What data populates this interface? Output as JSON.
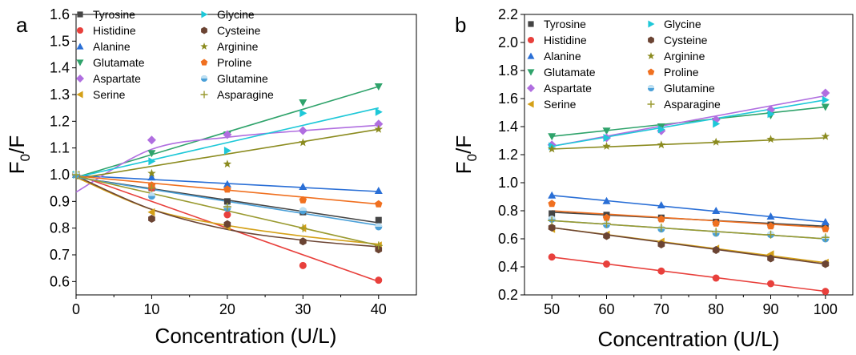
{
  "chart_data": [
    {
      "type": "scatter",
      "panel_label": "a",
      "xlabel": "Concentration (U/L)",
      "ylabel": "F0/F",
      "xlim": [
        0,
        45
      ],
      "ylim": [
        0.55,
        1.6
      ],
      "xticks": [
        0,
        10,
        20,
        30,
        40
      ],
      "yticks": [
        0.6,
        0.7,
        0.8,
        0.9,
        1.0,
        1.1,
        1.2,
        1.3,
        1.4,
        1.5,
        1.6
      ],
      "ytick_labels": [
        "0.6",
        "0.7",
        "0.8",
        "0.9",
        "1.0",
        "1.1",
        "1.2",
        "1.3",
        "1.4",
        "1.5",
        "1.6"
      ],
      "legend_position": "top-left",
      "x": [
        0,
        10,
        20,
        30,
        40
      ],
      "series": [
        {
          "name": "Tyrosine",
          "marker": "square",
          "color": "#444444",
          "values": [
            1.0,
            0.95,
            0.9,
            0.86,
            0.83
          ],
          "fit": "linear",
          "fit_y": [
            0.99,
            0.82
          ]
        },
        {
          "name": "Histidine",
          "marker": "circle",
          "color": "#e8403c",
          "values": [
            1.0,
            0.95,
            0.85,
            0.66,
            0.605
          ],
          "fit": "linear",
          "fit_y": [
            1.0,
            0.6
          ]
        },
        {
          "name": "Alanine",
          "marker": "triangle-up",
          "color": "#2a6fd6",
          "values": [
            1.0,
            0.99,
            0.965,
            0.955,
            0.94
          ],
          "fit": "linear",
          "fit_y": [
            0.997,
            0.937
          ]
        },
        {
          "name": "Glutamate",
          "marker": "triangle-down",
          "color": "#2fa36b",
          "values": [
            1.0,
            1.08,
            1.15,
            1.27,
            1.33
          ],
          "fit": "linear",
          "fit_y": [
            0.99,
            1.33
          ]
        },
        {
          "name": "Aspartate",
          "marker": "diamond",
          "color": "#b06ee0",
          "values": [
            1.0,
            1.13,
            1.15,
            1.165,
            1.19
          ],
          "fit": "power",
          "fit_y": [
            0.935,
            1.095,
            1.14,
            1.165,
            1.185
          ]
        },
        {
          "name": "Serine",
          "marker": "triangle-left",
          "color": "#d4a017",
          "values": [
            1.0,
            0.86,
            0.805,
            0.8,
            0.735
          ],
          "fit": "power",
          "fit_y": [
            0.99,
            0.87,
            0.81,
            0.77,
            0.74
          ]
        },
        {
          "name": "Glycine",
          "marker": "triangle-right",
          "color": "#1ec8d8",
          "values": [
            1.0,
            1.05,
            1.09,
            1.23,
            1.235
          ],
          "fit": "linear",
          "fit_y": [
            0.99,
            1.25
          ]
        },
        {
          "name": "Cysteine",
          "marker": "hexagon",
          "color": "#6b4433",
          "values": [
            1.0,
            0.835,
            0.815,
            0.75,
            0.72
          ],
          "fit": "exp",
          "fit_y": [
            0.995,
            0.87,
            0.795,
            0.755,
            0.73
          ]
        },
        {
          "name": "Arginine",
          "marker": "star",
          "color": "#8b8b1f",
          "values": [
            1.0,
            1.005,
            1.04,
            1.12,
            1.17
          ],
          "fit": "linear",
          "fit_y": [
            0.985,
            1.17
          ]
        },
        {
          "name": "Proline",
          "marker": "pentagon",
          "color": "#f07020",
          "values": [
            1.0,
            0.96,
            0.945,
            0.905,
            0.89
          ],
          "fit": "linear",
          "fit_y": [
            0.995,
            0.89
          ]
        },
        {
          "name": "Glutamine",
          "marker": "ball",
          "color": "#4aa0d8",
          "values": [
            1.0,
            0.92,
            0.875,
            0.865,
            0.805
          ],
          "fit": "linear",
          "fit_y": [
            0.99,
            0.81
          ]
        },
        {
          "name": "Asparagine",
          "marker": "plus",
          "color": "#9a9a30",
          "values": [
            1.0,
            0.95,
            0.88,
            0.8,
            0.735
          ],
          "fit": "linear",
          "fit_y": [
            0.995,
            0.735
          ]
        }
      ]
    },
    {
      "type": "scatter",
      "panel_label": "b",
      "xlabel": "Concentration (U/L)",
      "ylabel": "F0/F",
      "xlim": [
        45,
        105
      ],
      "ylim": [
        0.2,
        2.2
      ],
      "xticks": [
        50,
        60,
        70,
        80,
        90,
        100
      ],
      "yticks": [
        0.2,
        0.4,
        0.6,
        0.8,
        1.0,
        1.2,
        1.4,
        1.6,
        1.8,
        2.0,
        2.2
      ],
      "ytick_labels": [
        "0.2",
        "0.4",
        "0.6",
        "0.8",
        "1.0",
        "1.2",
        "1.4",
        "1.6",
        "1.8",
        "2.0",
        "2.2"
      ],
      "legend_position": "top-left",
      "x": [
        50,
        60,
        70,
        80,
        90,
        100
      ],
      "series": [
        {
          "name": "Tyrosine",
          "marker": "square",
          "color": "#444444",
          "values": [
            0.78,
            0.77,
            0.75,
            0.72,
            0.7,
            0.69
          ],
          "fit": "linear",
          "fit_y": [
            0.79,
            0.69
          ]
        },
        {
          "name": "Histidine",
          "marker": "circle",
          "color": "#e8403c",
          "values": [
            0.47,
            0.42,
            0.37,
            0.32,
            0.28,
            0.225
          ],
          "fit": "linear",
          "fit_y": [
            0.47,
            0.225
          ]
        },
        {
          "name": "Alanine",
          "marker": "triangle-up",
          "color": "#2a6fd6",
          "values": [
            0.91,
            0.87,
            0.84,
            0.8,
            0.76,
            0.72
          ],
          "fit": "linear",
          "fit_y": [
            0.91,
            0.72
          ]
        },
        {
          "name": "Glutamate",
          "marker": "triangle-down",
          "color": "#2fa36b",
          "values": [
            1.33,
            1.37,
            1.4,
            1.44,
            1.48,
            1.54
          ],
          "fit": "linear",
          "fit_y": [
            1.33,
            1.54
          ]
        },
        {
          "name": "Aspartate",
          "marker": "diamond",
          "color": "#b06ee0",
          "values": [
            1.27,
            1.32,
            1.37,
            1.45,
            1.52,
            1.64
          ],
          "fit": "linear",
          "fit_y": [
            1.26,
            1.62
          ]
        },
        {
          "name": "Serine",
          "marker": "triangle-left",
          "color": "#d4a017",
          "values": [
            0.67,
            0.63,
            0.58,
            0.53,
            0.49,
            0.43
          ],
          "fit": "linear",
          "fit_y": [
            0.68,
            0.43
          ]
        },
        {
          "name": "Glycine",
          "marker": "triangle-right",
          "color": "#1ec8d8",
          "values": [
            1.26,
            1.32,
            1.38,
            1.42,
            1.49,
            1.59
          ],
          "fit": "linear",
          "fit_y": [
            1.26,
            1.59
          ]
        },
        {
          "name": "Cysteine",
          "marker": "hexagon",
          "color": "#6b4433",
          "values": [
            0.68,
            0.62,
            0.56,
            0.52,
            0.46,
            0.42
          ],
          "fit": "linear",
          "fit_y": [
            0.68,
            0.42
          ]
        },
        {
          "name": "Arginine",
          "marker": "star",
          "color": "#8b8b1f",
          "values": [
            1.24,
            1.26,
            1.27,
            1.29,
            1.31,
            1.33
          ],
          "fit": "linear",
          "fit_y": [
            1.24,
            1.32
          ]
        },
        {
          "name": "Proline",
          "marker": "pentagon",
          "color": "#f07020",
          "values": [
            0.85,
            0.75,
            0.74,
            0.71,
            0.69,
            0.67
          ],
          "fit": "linear",
          "fit_y": [
            0.8,
            0.68
          ]
        },
        {
          "name": "Glutamine",
          "marker": "ball",
          "color": "#4aa0d8",
          "values": [
            0.74,
            0.7,
            0.67,
            0.64,
            0.63,
            0.6
          ],
          "fit": "linear",
          "fit_y": [
            0.73,
            0.6
          ]
        },
        {
          "name": "Asparagine",
          "marker": "plus",
          "color": "#9a9a30",
          "values": [
            0.73,
            0.71,
            0.68,
            0.65,
            0.63,
            0.61
          ],
          "fit": "linear",
          "fit_y": [
            0.73,
            0.6
          ]
        }
      ]
    }
  ]
}
